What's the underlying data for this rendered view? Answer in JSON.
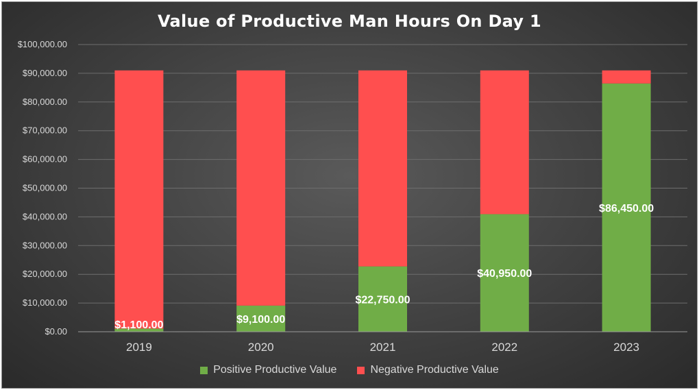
{
  "chart_data": {
    "type": "bar",
    "stacked": true,
    "title": "Value of Productive Man Hours On Day 1",
    "categories": [
      "2019",
      "2020",
      "2021",
      "2022",
      "2023"
    ],
    "series": [
      {
        "name": "Positive Productive Value",
        "color": "#70ad47",
        "values": [
          1100,
          9100,
          22750,
          40950,
          86450
        ],
        "data_labels": [
          "$1,100.00",
          "$9,100.00",
          "$22,750.00",
          "$40,950.00",
          "$86,450.00"
        ]
      },
      {
        "name": "Negative Productive Value",
        "color": "#ff4f4f",
        "values": [
          89900,
          81900,
          68250,
          50050,
          4550
        ]
      }
    ],
    "ylim": [
      0,
      100000
    ],
    "y_ticks": [
      {
        "value": 0,
        "label": "$0.00"
      },
      {
        "value": 10000,
        "label": "$10,000.00"
      },
      {
        "value": 20000,
        "label": "$20,000.00"
      },
      {
        "value": 30000,
        "label": "$30,000.00"
      },
      {
        "value": 40000,
        "label": "$40,000.00"
      },
      {
        "value": 50000,
        "label": "$50,000.00"
      },
      {
        "value": 60000,
        "label": "$60,000.00"
      },
      {
        "value": 70000,
        "label": "$70,000.00"
      },
      {
        "value": 80000,
        "label": "$80,000.00"
      },
      {
        "value": 90000,
        "label": "$90,000.00"
      },
      {
        "value": 100000,
        "label": "$100,000.00"
      }
    ],
    "xlabel": "",
    "ylabel": "",
    "grid": true,
    "legend_position": "bottom"
  }
}
